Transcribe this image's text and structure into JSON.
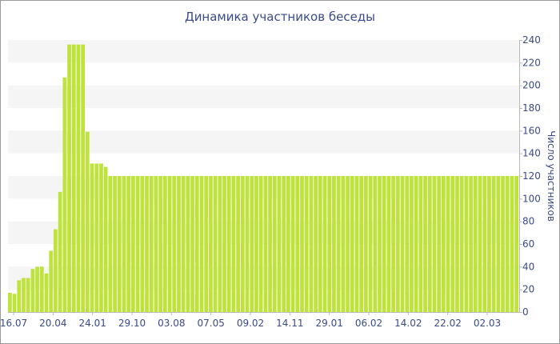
{
  "chart_data": {
    "type": "bar",
    "title": "Динамика участников беседы",
    "xlabel": "",
    "ylabel": "Число участников",
    "ylim": [
      0,
      240
    ],
    "yticks": [
      0,
      20,
      40,
      60,
      80,
      100,
      120,
      140,
      160,
      180,
      200,
      220,
      240
    ],
    "x_tick_labels": [
      "16.07",
      "20.04",
      "24.01",
      "29.10",
      "03.08",
      "07.05",
      "09.02",
      "14.11",
      "29.01",
      "06.02",
      "14.02",
      "22.02",
      "02.03"
    ],
    "grid": "horizontal bands",
    "bar_color": "#bee33a",
    "values": [
      17,
      16,
      28,
      30,
      30,
      38,
      40,
      40,
      34,
      54,
      73,
      106,
      207,
      236,
      236,
      236,
      236,
      159,
      131,
      131,
      131,
      128,
      120,
      120,
      120,
      120,
      120,
      120,
      120,
      120,
      120,
      120,
      120,
      120,
      120,
      120,
      120,
      120,
      120,
      120,
      120,
      120,
      120,
      120,
      120,
      120,
      120,
      120,
      120,
      120,
      120,
      120,
      120,
      120,
      120,
      120,
      120,
      120,
      120,
      120,
      120,
      120,
      120,
      120,
      120,
      120,
      120,
      120,
      120,
      120,
      120,
      120,
      120,
      120,
      120,
      120,
      120,
      120,
      120,
      120,
      120,
      120,
      120,
      120,
      120,
      120,
      120,
      120,
      120,
      120,
      120,
      120,
      120,
      120,
      120,
      120,
      120,
      120,
      120,
      120,
      120,
      120,
      120,
      120,
      120,
      120,
      120,
      120,
      120,
      120,
      120,
      120
    ]
  }
}
